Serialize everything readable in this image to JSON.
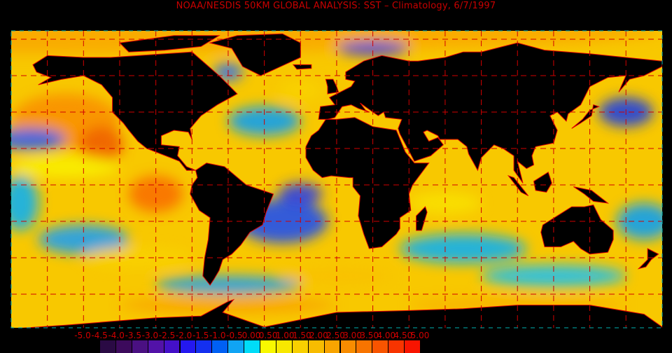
{
  "title": "NOAA/NESDIS 50KM GLOBAL ANALYSIS: SST – Climatology, 6/7/1997",
  "colorbar": {
    "labels": [
      "-5.0",
      "-4.5",
      "-4.0",
      "-3.5",
      "-3.0",
      "-2.5",
      "-2.0",
      "-1.5",
      "-1.0",
      "-0.5",
      "0.00",
      "0.50",
      "1.00",
      "1.50",
      "2.00",
      "2.50",
      "3.00",
      "3.50",
      "4.00",
      "4.50",
      "5.00"
    ],
    "colors": [
      "#2a0a44",
      "#3c0a5c",
      "#4a1082",
      "#5212a8",
      "#4410c8",
      "#2418f0",
      "#1430f0",
      "#0060f4",
      "#10a4f4",
      "#00dcf8",
      "#f8f800",
      "#f8e800",
      "#f8d000",
      "#f8bc00",
      "#f8a400",
      "#f88c00",
      "#f87400",
      "#f85400",
      "#f83400",
      "#f81400"
    ]
  },
  "map": {
    "land_color": "#000000",
    "coastline_color": "#e00000",
    "grid_color": "#d00000"
  }
}
